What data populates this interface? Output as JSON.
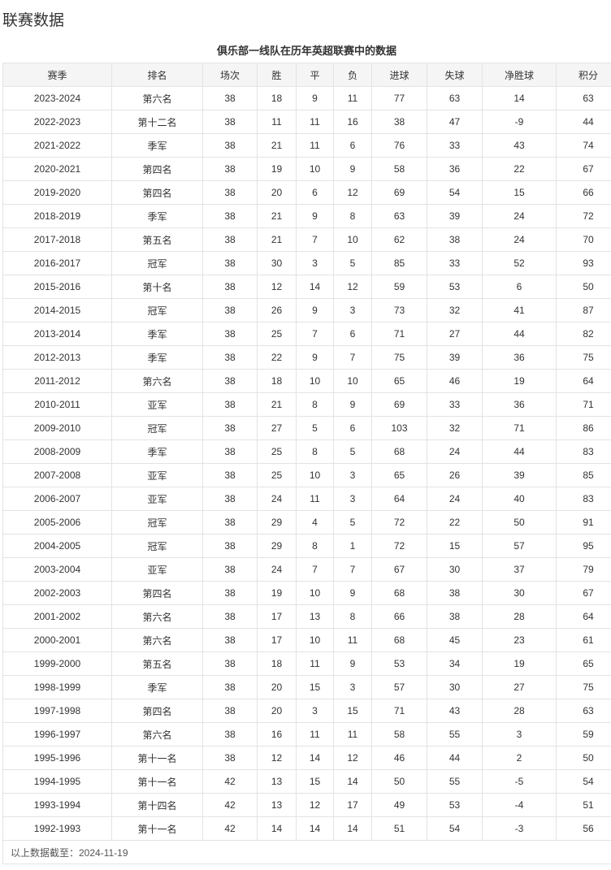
{
  "heading": "联赛数据",
  "caption": "俱乐部一线队在历年英超联赛中的数据",
  "columns": [
    "赛季",
    "排名",
    "场次",
    "胜",
    "平",
    "负",
    "进球",
    "失球",
    "净胜球",
    "积分"
  ],
  "rows": [
    [
      "2023-2024",
      "第六名",
      "38",
      "18",
      "9",
      "11",
      "77",
      "63",
      "14",
      "63"
    ],
    [
      "2022-2023",
      "第十二名",
      "38",
      "11",
      "11",
      "16",
      "38",
      "47",
      "-9",
      "44"
    ],
    [
      "2021-2022",
      "季军",
      "38",
      "21",
      "11",
      "6",
      "76",
      "33",
      "43",
      "74"
    ],
    [
      "2020-2021",
      "第四名",
      "38",
      "19",
      "10",
      "9",
      "58",
      "36",
      "22",
      "67"
    ],
    [
      "2019-2020",
      "第四名",
      "38",
      "20",
      "6",
      "12",
      "69",
      "54",
      "15",
      "66"
    ],
    [
      "2018-2019",
      "季军",
      "38",
      "21",
      "9",
      "8",
      "63",
      "39",
      "24",
      "72"
    ],
    [
      "2017-2018",
      "第五名",
      "38",
      "21",
      "7",
      "10",
      "62",
      "38",
      "24",
      "70"
    ],
    [
      "2016-2017",
      "冠军",
      "38",
      "30",
      "3",
      "5",
      "85",
      "33",
      "52",
      "93"
    ],
    [
      "2015-2016",
      "第十名",
      "38",
      "12",
      "14",
      "12",
      "59",
      "53",
      "6",
      "50"
    ],
    [
      "2014-2015",
      "冠军",
      "38",
      "26",
      "9",
      "3",
      "73",
      "32",
      "41",
      "87"
    ],
    [
      "2013-2014",
      "季军",
      "38",
      "25",
      "7",
      "6",
      "71",
      "27",
      "44",
      "82"
    ],
    [
      "2012-2013",
      "季军",
      "38",
      "22",
      "9",
      "7",
      "75",
      "39",
      "36",
      "75"
    ],
    [
      "2011-2012",
      "第六名",
      "38",
      "18",
      "10",
      "10",
      "65",
      "46",
      "19",
      "64"
    ],
    [
      "2010-2011",
      "亚军",
      "38",
      "21",
      "8",
      "9",
      "69",
      "33",
      "36",
      "71"
    ],
    [
      "2009-2010",
      "冠军",
      "38",
      "27",
      "5",
      "6",
      "103",
      "32",
      "71",
      "86"
    ],
    [
      "2008-2009",
      "季军",
      "38",
      "25",
      "8",
      "5",
      "68",
      "24",
      "44",
      "83"
    ],
    [
      "2007-2008",
      "亚军",
      "38",
      "25",
      "10",
      "3",
      "65",
      "26",
      "39",
      "85"
    ],
    [
      "2006-2007",
      "亚军",
      "38",
      "24",
      "11",
      "3",
      "64",
      "24",
      "40",
      "83"
    ],
    [
      "2005-2006",
      "冠军",
      "38",
      "29",
      "4",
      "5",
      "72",
      "22",
      "50",
      "91"
    ],
    [
      "2004-2005",
      "冠军",
      "38",
      "29",
      "8",
      "1",
      "72",
      "15",
      "57",
      "95"
    ],
    [
      "2003-2004",
      "亚军",
      "38",
      "24",
      "7",
      "7",
      "67",
      "30",
      "37",
      "79"
    ],
    [
      "2002-2003",
      "第四名",
      "38",
      "19",
      "10",
      "9",
      "68",
      "38",
      "30",
      "67"
    ],
    [
      "2001-2002",
      "第六名",
      "38",
      "17",
      "13",
      "8",
      "66",
      "38",
      "28",
      "64"
    ],
    [
      "2000-2001",
      "第六名",
      "38",
      "17",
      "10",
      "11",
      "68",
      "45",
      "23",
      "61"
    ],
    [
      "1999-2000",
      "第五名",
      "38",
      "18",
      "11",
      "9",
      "53",
      "34",
      "19",
      "65"
    ],
    [
      "1998-1999",
      "季军",
      "38",
      "20",
      "15",
      "3",
      "57",
      "30",
      "27",
      "75"
    ],
    [
      "1997-1998",
      "第四名",
      "38",
      "20",
      "3",
      "15",
      "71",
      "43",
      "28",
      "63"
    ],
    [
      "1996-1997",
      "第六名",
      "38",
      "16",
      "11",
      "11",
      "58",
      "55",
      "3",
      "59"
    ],
    [
      "1995-1996",
      "第十一名",
      "38",
      "12",
      "14",
      "12",
      "46",
      "44",
      "2",
      "50"
    ],
    [
      "1994-1995",
      "第十一名",
      "42",
      "13",
      "15",
      "14",
      "50",
      "55",
      "-5",
      "54"
    ],
    [
      "1993-1994",
      "第十四名",
      "42",
      "13",
      "12",
      "17",
      "49",
      "53",
      "-4",
      "51"
    ],
    [
      "1992-1993",
      "第十一名",
      "42",
      "14",
      "14",
      "14",
      "51",
      "54",
      "-3",
      "56"
    ]
  ],
  "footer": "以上数据截至：2024-11-19"
}
